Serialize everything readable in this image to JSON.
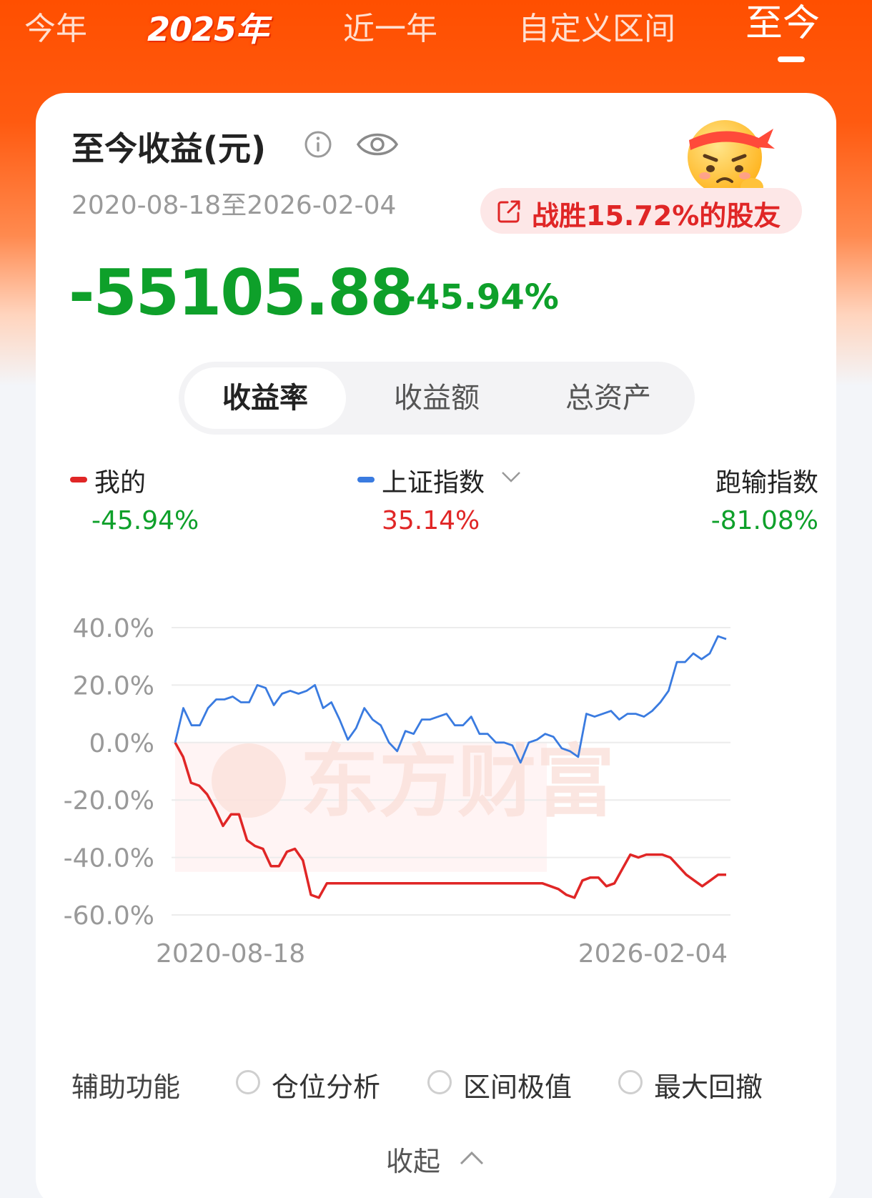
{
  "period_tabs": [
    "今年",
    "2025年",
    "近一年",
    "自定义区间",
    "至今"
  ],
  "active_tab": "至今",
  "card": {
    "title": "至今收益(元)",
    "date_range": "2020-08-18至2026-02-04",
    "beat_text": "战胜15.72%的股友",
    "amount": "-55105.88",
    "percent": "-45.94%"
  },
  "segments": [
    "收益率",
    "收益额",
    "总资产"
  ],
  "legend": [
    {
      "name": "我的",
      "value": "-45.94%",
      "dot_color": "#e02626",
      "value_color": "#0ea02a"
    },
    {
      "name": "上证指数",
      "value": "35.14%",
      "dot_color": "#3a7be0",
      "value_color": "#e02626"
    },
    {
      "name": "跑输指数",
      "value": "-81.08%",
      "dot_color": "",
      "value_color": "#0ea02a"
    }
  ],
  "watermark": "东方财富",
  "chart_data": {
    "type": "line",
    "y_ticks": [
      "40.0%",
      "20.0%",
      "0.0%",
      "-20.0%",
      "-40.0%",
      "-60.0%"
    ],
    "ylim": [
      -60,
      40
    ],
    "x_labels": [
      "2020-08-18",
      "2026-02-04"
    ],
    "grid": true,
    "series": [
      {
        "name": "我的",
        "color": "#e02626",
        "values": [
          0,
          -5,
          -14,
          -15,
          -18,
          -23,
          -29,
          -25,
          -25,
          -34,
          -36,
          -37,
          -43,
          -43,
          -38,
          -37,
          -41,
          -53,
          -54,
          -49,
          -49,
          -49,
          -49,
          -49,
          -49,
          -49,
          -49,
          -49,
          -49,
          -49,
          -49,
          -49,
          -49,
          -49,
          -49,
          -49,
          -49,
          -49,
          -49,
          -49,
          -49,
          -49,
          -49,
          -49,
          -49,
          -49,
          -49,
          -50,
          -51,
          -53,
          -54,
          -48,
          -47,
          -47,
          -50,
          -49,
          -44,
          -39,
          -40,
          -39,
          -39,
          -39,
          -40,
          -43,
          -46,
          -48,
          -50,
          -48,
          -46,
          -46
        ]
      },
      {
        "name": "上证指数",
        "color": "#3a7be0",
        "values": [
          0,
          12,
          6,
          6,
          12,
          15,
          15,
          16,
          14,
          14,
          20,
          19,
          13,
          17,
          18,
          17,
          18,
          20,
          12,
          14,
          8,
          1,
          5,
          12,
          8,
          6,
          0,
          -3,
          4,
          3,
          8,
          8,
          9,
          10,
          6,
          6,
          9,
          3,
          3,
          0,
          0,
          -1,
          -7,
          0,
          1,
          3,
          2,
          -2,
          -3,
          -5,
          10,
          9,
          10,
          11,
          8,
          10,
          10,
          9,
          11,
          14,
          18,
          28,
          28,
          31,
          29,
          31,
          37,
          36
        ]
      }
    ]
  },
  "aux": {
    "label": "辅助功能",
    "options": [
      "仓位分析",
      "区间极值",
      "最大回撤"
    ]
  },
  "collapse_label": "收起"
}
